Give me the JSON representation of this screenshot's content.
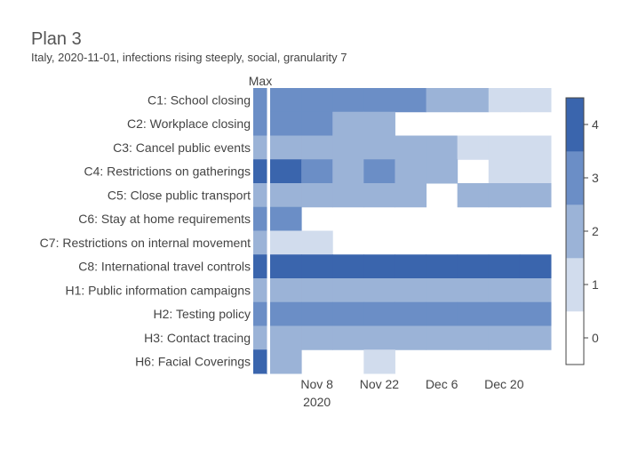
{
  "chart_data": {
    "type": "heatmap",
    "title": "Plan 3",
    "subtitle": "Italy, 2020-11-01, infections rising steeply, social, granularity 7",
    "max_column_label": "Max",
    "rows": [
      "C1: School closing",
      "C2: Workplace closing",
      "C3: Cancel public events",
      "C4: Restrictions on gatherings",
      "C5: Close public transport",
      "C6: Stay at home requirements",
      "C7: Restrictions on internal movement",
      "C8: International travel controls",
      "H1: Public information campaigns",
      "H2: Testing policy",
      "H3: Contact tracing",
      "H6: Facial Coverings"
    ],
    "max_values": [
      3,
      3,
      2,
      4,
      2,
      3,
      2,
      4,
      2,
      3,
      2,
      4
    ],
    "week_starts": [
      "2020-11-01",
      "2020-11-08",
      "2020-11-15",
      "2020-11-22",
      "2020-11-29",
      "2020-12-06",
      "2020-12-13",
      "2020-12-20",
      "2020-12-27"
    ],
    "values": [
      [
        3,
        3,
        3,
        3,
        3,
        2,
        2,
        1,
        1
      ],
      [
        3,
        3,
        2,
        2,
        null,
        null,
        null,
        null,
        null
      ],
      [
        2,
        2,
        2,
        2,
        2,
        2,
        1,
        1,
        1
      ],
      [
        4,
        3,
        2,
        3,
        2,
        2,
        null,
        1,
        1
      ],
      [
        2,
        2,
        2,
        2,
        2,
        null,
        2,
        2,
        2
      ],
      [
        3,
        null,
        null,
        null,
        null,
        null,
        null,
        null,
        null
      ],
      [
        1,
        1,
        null,
        null,
        null,
        null,
        null,
        null,
        null
      ],
      [
        4,
        4,
        4,
        4,
        4,
        4,
        4,
        4,
        4
      ],
      [
        2,
        2,
        2,
        2,
        2,
        2,
        2,
        2,
        2
      ],
      [
        3,
        3,
        3,
        3,
        3,
        3,
        3,
        3,
        3
      ],
      [
        2,
        2,
        2,
        2,
        2,
        2,
        2,
        2,
        2
      ],
      [
        2,
        null,
        null,
        1,
        null,
        null,
        null,
        null,
        null
      ]
    ],
    "x_ticks": [
      {
        "date": "2020-11-08",
        "label": "Nov 8",
        "sublabel": "2020"
      },
      {
        "date": "2020-11-22",
        "label": "Nov 22",
        "sublabel": ""
      },
      {
        "date": "2020-12-06",
        "label": "Dec 6",
        "sublabel": ""
      },
      {
        "date": "2020-12-20",
        "label": "Dec 20",
        "sublabel": ""
      }
    ],
    "colorscale": {
      "min": 0,
      "max": 4,
      "ticks": [
        "0",
        "1",
        "2",
        "3",
        "4"
      ],
      "colors": [
        "#ffffff",
        "#d1dced",
        "#9bb3d7",
        "#6b8ec6",
        "#3a65ad"
      ]
    },
    "colors": {
      "text": "#444444",
      "divider": "#ffffff",
      "colorbar_border": "#444444"
    }
  }
}
